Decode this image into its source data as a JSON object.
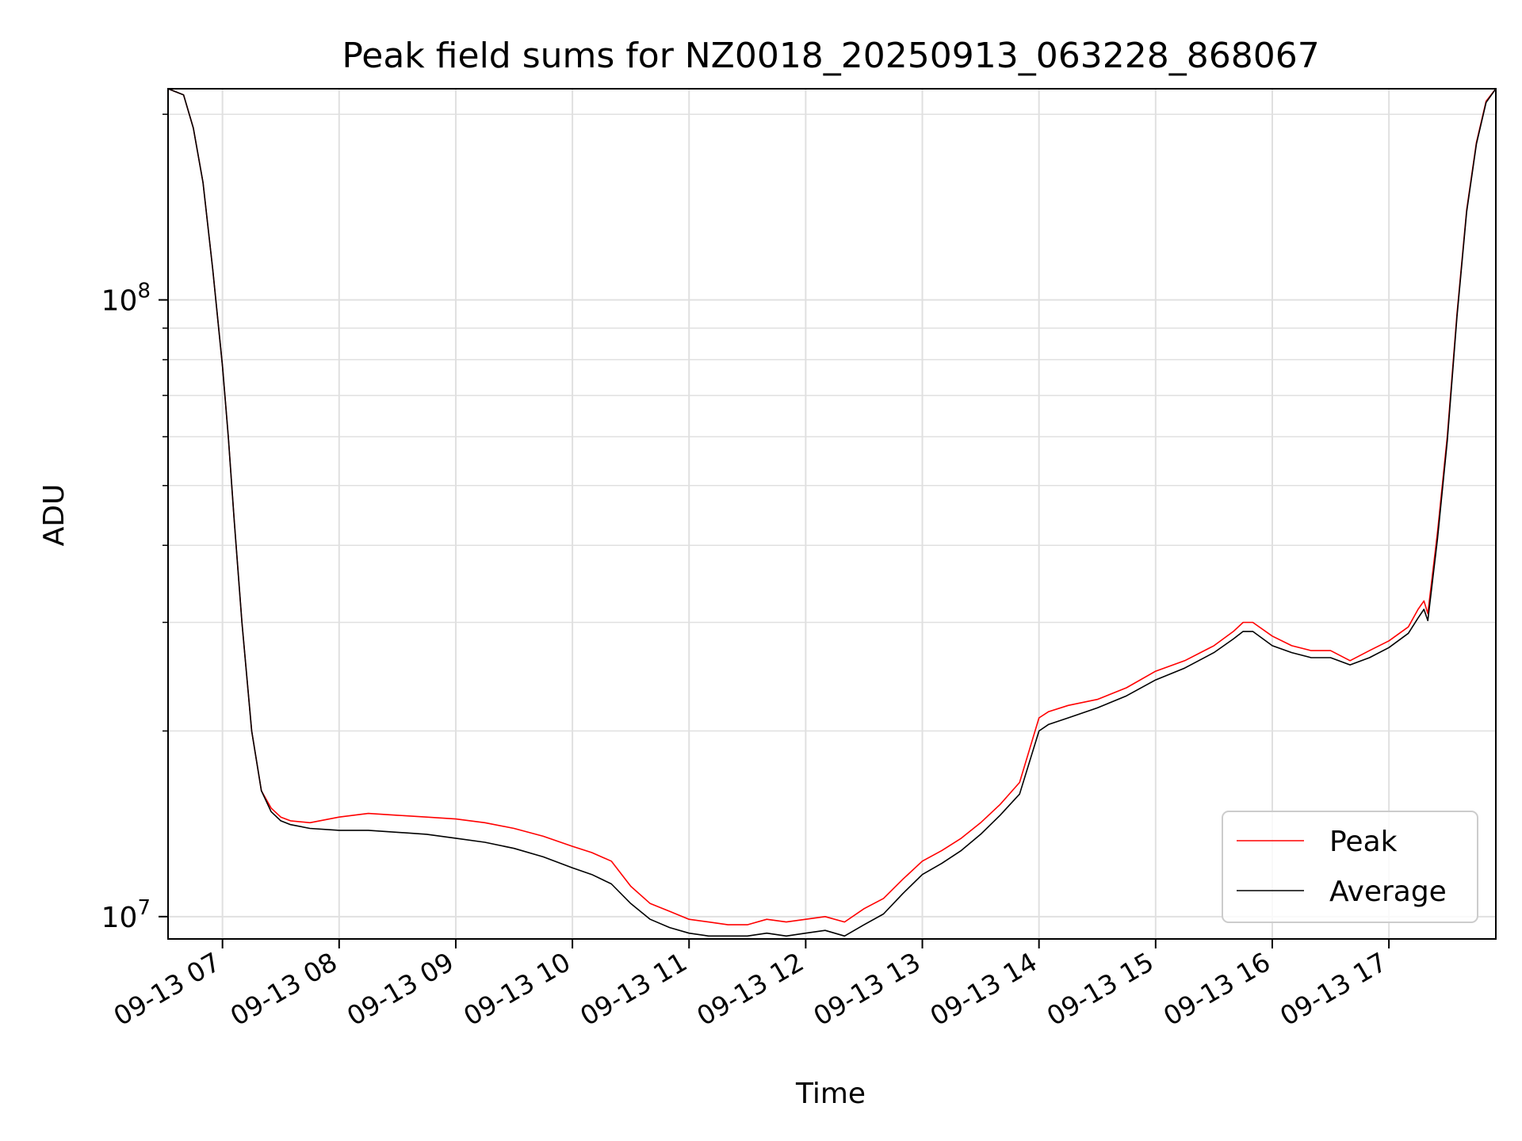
{
  "chart_data": {
    "type": "line",
    "title": "Peak field sums for NZ0018_20250913_063228_868067",
    "xlabel": "Time",
    "ylabel": "ADU",
    "yscale": "log",
    "ylim": [
      9200000,
      220000000
    ],
    "xlim": [
      "2025-09-13 06:32",
      "2025-09-13 17:55"
    ],
    "grid": true,
    "legend_position": "lower right",
    "x_ticks": [
      "09-13 07",
      "09-13 08",
      "09-13 09",
      "09-13 10",
      "09-13 11",
      "09-13 12",
      "09-13 13",
      "09-13 14",
      "09-13 15",
      "09-13 16",
      "09-13 17"
    ],
    "y_ticks": [
      {
        "base": "10",
        "exp": "7"
      },
      {
        "base": "10",
        "exp": "8"
      }
    ],
    "series": [
      {
        "name": "Peak",
        "color": "#ff0000",
        "x": [
          "06:32",
          "06:40",
          "06:45",
          "06:50",
          "06:55",
          "07:00",
          "07:03",
          "07:06",
          "07:10",
          "07:15",
          "07:20",
          "07:25",
          "07:30",
          "07:35",
          "07:45",
          "08:00",
          "08:15",
          "08:30",
          "08:45",
          "09:00",
          "09:15",
          "09:30",
          "09:45",
          "10:00",
          "10:10",
          "10:20",
          "10:30",
          "10:40",
          "10:50",
          "11:00",
          "11:10",
          "11:20",
          "11:30",
          "11:40",
          "11:50",
          "12:00",
          "12:10",
          "12:20",
          "12:30",
          "12:40",
          "12:50",
          "13:00",
          "13:10",
          "13:20",
          "13:30",
          "13:40",
          "13:50",
          "14:00",
          "14:05",
          "14:15",
          "14:30",
          "14:45",
          "15:00",
          "15:15",
          "15:30",
          "15:40",
          "15:45",
          "15:50",
          "16:00",
          "16:10",
          "16:20",
          "16:30",
          "16:40",
          "16:50",
          "17:00",
          "17:10",
          "17:15",
          "17:18",
          "17:20",
          "17:25",
          "17:30",
          "17:35",
          "17:40",
          "17:45",
          "17:50",
          "17:55"
        ],
        "y": [
          220000000,
          215000000,
          190000000,
          155000000,
          112000000,
          78000000,
          60000000,
          44000000,
          30000000,
          20000000,
          16000000,
          15000000,
          14500000,
          14300000,
          14200000,
          14500000,
          14700000,
          14600000,
          14500000,
          14400000,
          14200000,
          13900000,
          13500000,
          13000000,
          12700000,
          12300000,
          11200000,
          10500000,
          10200000,
          9900000,
          9800000,
          9700000,
          9700000,
          9900000,
          9800000,
          9900000,
          10000000,
          9800000,
          10300000,
          10700000,
          11500000,
          12300000,
          12800000,
          13400000,
          14200000,
          15200000,
          16500000,
          21000000,
          21500000,
          22000000,
          22500000,
          23500000,
          25000000,
          26000000,
          27500000,
          29000000,
          30000000,
          30000000,
          28500000,
          27500000,
          27000000,
          27000000,
          26000000,
          27000000,
          28000000,
          29500000,
          31500000,
          32500000,
          31000000,
          42000000,
          60000000,
          95000000,
          140000000,
          180000000,
          210000000,
          220000000
        ]
      },
      {
        "name": "Average",
        "color": "#000000",
        "x": [
          "06:32",
          "06:40",
          "06:45",
          "06:50",
          "06:55",
          "07:00",
          "07:03",
          "07:06",
          "07:10",
          "07:15",
          "07:20",
          "07:25",
          "07:30",
          "07:35",
          "07:45",
          "08:00",
          "08:15",
          "08:30",
          "08:45",
          "09:00",
          "09:15",
          "09:30",
          "09:45",
          "10:00",
          "10:10",
          "10:20",
          "10:30",
          "10:40",
          "10:50",
          "11:00",
          "11:10",
          "11:20",
          "11:30",
          "11:40",
          "11:50",
          "12:00",
          "12:10",
          "12:20",
          "12:30",
          "12:40",
          "12:50",
          "13:00",
          "13:10",
          "13:20",
          "13:30",
          "13:40",
          "13:50",
          "14:00",
          "14:05",
          "14:15",
          "14:30",
          "14:45",
          "15:00",
          "15:15",
          "15:30",
          "15:40",
          "15:45",
          "15:50",
          "16:00",
          "16:10",
          "16:20",
          "16:30",
          "16:40",
          "16:50",
          "17:00",
          "17:10",
          "17:15",
          "17:18",
          "17:20",
          "17:25",
          "17:30",
          "17:35",
          "17:40",
          "17:45",
          "17:50",
          "17:55"
        ],
        "y": [
          220000000,
          215000000,
          190000000,
          155000000,
          112000000,
          78000000,
          60000000,
          44000000,
          30000000,
          20000000,
          16000000,
          14800000,
          14300000,
          14100000,
          13900000,
          13800000,
          13800000,
          13700000,
          13600000,
          13400000,
          13200000,
          12900000,
          12500000,
          12000000,
          11700000,
          11300000,
          10500000,
          9900000,
          9600000,
          9400000,
          9300000,
          9300000,
          9300000,
          9400000,
          9300000,
          9400000,
          9500000,
          9300000,
          9700000,
          10100000,
          10900000,
          11700000,
          12200000,
          12800000,
          13600000,
          14600000,
          15800000,
          20000000,
          20500000,
          21000000,
          21800000,
          22800000,
          24200000,
          25300000,
          26800000,
          28200000,
          29000000,
          29000000,
          27500000,
          26800000,
          26300000,
          26300000,
          25600000,
          26300000,
          27300000,
          28800000,
          30500000,
          31500000,
          30200000,
          41000000,
          59000000,
          94000000,
          139000000,
          179000000,
          209000000,
          220000000
        ]
      }
    ]
  }
}
